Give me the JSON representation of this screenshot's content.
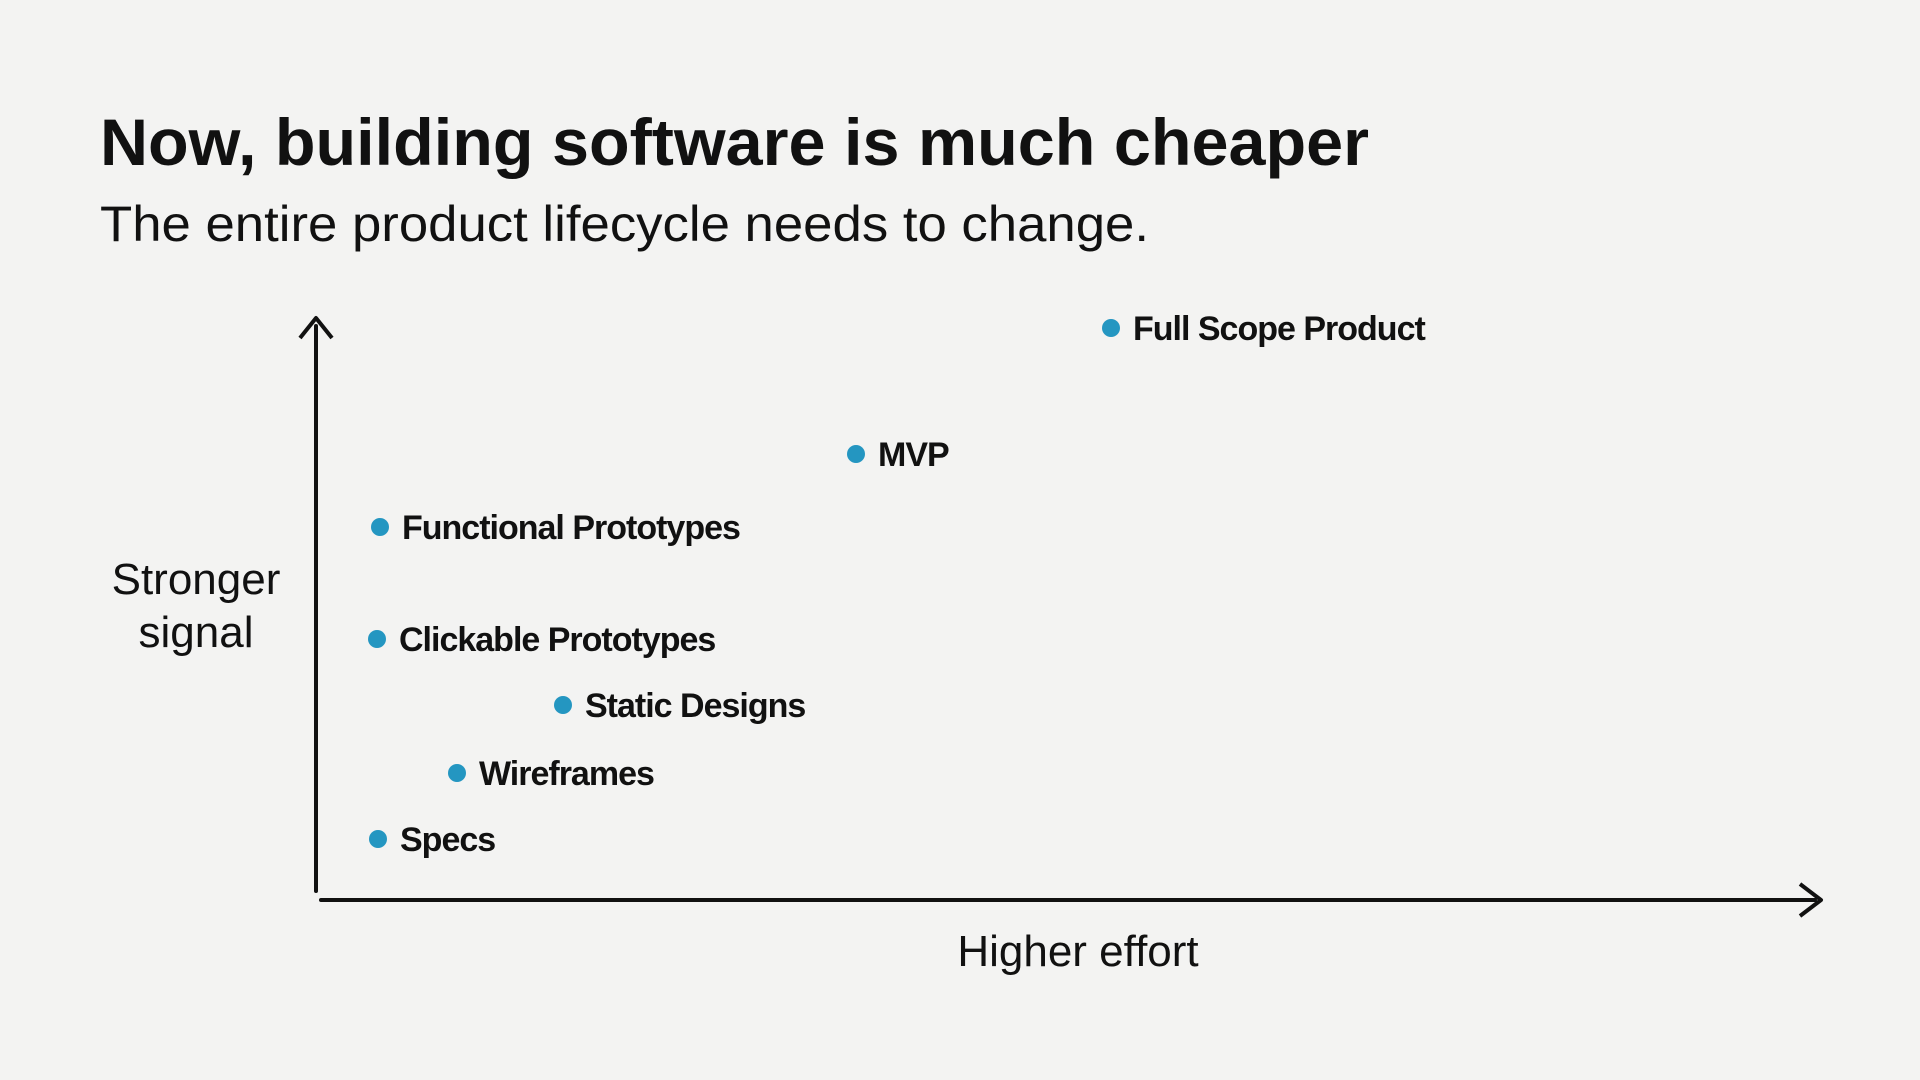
{
  "header": {
    "title": "Now, building software is much cheaper",
    "subtitle": "The entire product lifecycle needs to change."
  },
  "diagram": {
    "y_label": [
      "Stronger",
      "signal"
    ],
    "x_label": "Higher effort",
    "dot_color": "#2496c1",
    "nodes": [
      {
        "label": "Full Scope Product"
      },
      {
        "label": "MVP"
      },
      {
        "label": "Functional Prototypes"
      },
      {
        "label": "Clickable Prototypes"
      },
      {
        "label": "Static Designs"
      },
      {
        "label": "Wireframes"
      },
      {
        "label": "Specs"
      }
    ]
  }
}
